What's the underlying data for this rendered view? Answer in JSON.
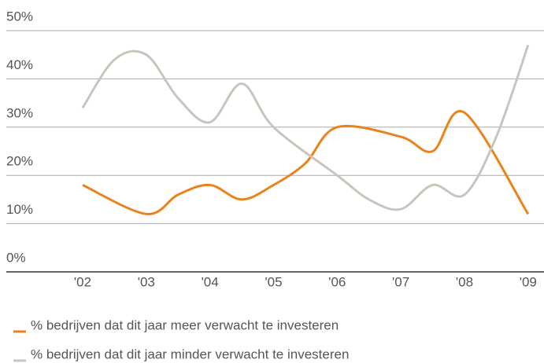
{
  "chart_data": {
    "type": "line",
    "series": [
      {
        "name": "% bedrijven dat dit jaar meer verwacht te investeren",
        "color": "#e8831e",
        "x": [
          2002,
          2003,
          2003.5,
          2004,
          2004.5,
          2005,
          2005.5,
          2006,
          2007,
          2007.5,
          2008,
          2009
        ],
        "values": [
          18,
          12,
          16,
          18,
          15,
          18,
          22.5,
          30,
          28,
          25,
          33,
          12
        ]
      },
      {
        "name": "% bedrijven dat dit jaar minder verwacht te investeren",
        "color": "#c9c5bd",
        "x": [
          2002,
          2002.5,
          2003,
          2003.5,
          2004,
          2004.5,
          2005,
          2006,
          2006.5,
          2007,
          2007.5,
          2008,
          2008.5,
          2009
        ],
        "values": [
          34,
          44,
          45,
          36,
          31,
          39,
          30,
          20,
          15,
          13,
          18,
          16,
          28,
          47
        ]
      }
    ],
    "xlim": [
      2000.8,
      2009.25
    ],
    "xticks": [
      {
        "value": 2002,
        "label": "'02"
      },
      {
        "value": 2003,
        "label": "'03"
      },
      {
        "value": 2004,
        "label": "'04"
      },
      {
        "value": 2005,
        "label": "'05"
      },
      {
        "value": 2006,
        "label": "'06"
      },
      {
        "value": 2007,
        "label": "'07"
      },
      {
        "value": 2008,
        "label": "'08"
      },
      {
        "value": 2009,
        "label": "'09"
      }
    ],
    "ylim": [
      0,
      50
    ],
    "yticks": [
      {
        "value": 0,
        "label": "0%"
      },
      {
        "value": 10,
        "label": "10%"
      },
      {
        "value": 20,
        "label": "20%"
      },
      {
        "value": 30,
        "label": "30%"
      },
      {
        "value": 40,
        "label": "40%"
      },
      {
        "value": 50,
        "label": "50%"
      }
    ],
    "grid": true
  }
}
